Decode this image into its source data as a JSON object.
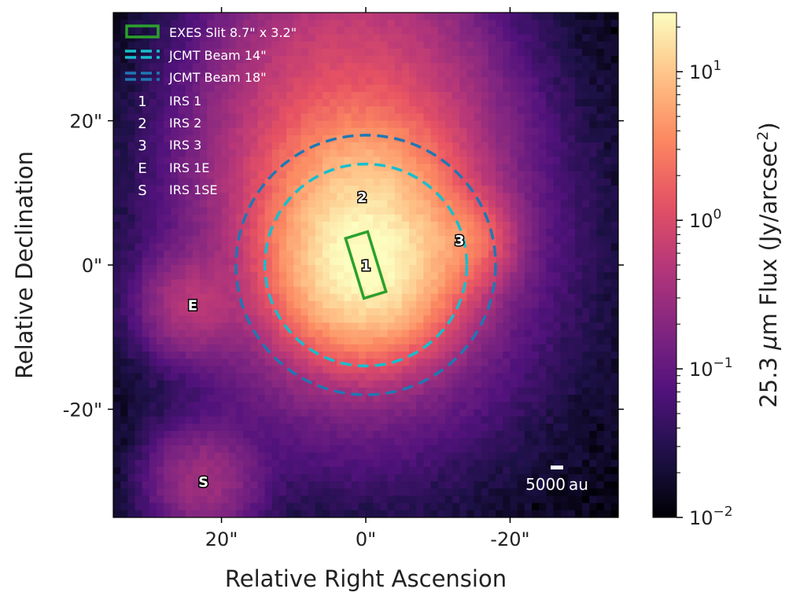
{
  "chart_data": {
    "type": "heatmap",
    "xlabel": "Relative Right Ascension",
    "ylabel": "Relative Declination",
    "x_range_arcsec": [
      35,
      -35
    ],
    "y_range_arcsec": [
      -35,
      35
    ],
    "x_ticks": [
      {
        "value": 20,
        "label": "20\""
      },
      {
        "value": 0,
        "label": "0\""
      },
      {
        "value": -20,
        "label": "-20\""
      }
    ],
    "y_ticks": [
      {
        "value": 20,
        "label": "20\""
      },
      {
        "value": 0,
        "label": "0\""
      },
      {
        "value": -20,
        "label": "-20\""
      }
    ],
    "colorbar": {
      "label_pre": "25.3 ",
      "label_mu": "μ",
      "label_post": "m Flux (Jy/arcsec",
      "label_sup": "2",
      "label_end": ")",
      "scale": "log",
      "range": [
        0.01,
        25
      ],
      "ticks": [
        {
          "value": 0.01,
          "base": "10",
          "exp": "−2"
        },
        {
          "value": 0.1,
          "base": "10",
          "exp": "−1"
        },
        {
          "value": 1,
          "base": "10",
          "exp": "0"
        },
        {
          "value": 10,
          "base": "10",
          "exp": "1"
        }
      ],
      "colormap": "magma",
      "colors": [
        "#000004",
        "#1d1147",
        "#51127c",
        "#822681",
        "#b73779",
        "#e75263",
        "#fc8961",
        "#fec287",
        "#fcfdbf"
      ]
    },
    "sources": [
      {
        "id": "1",
        "name": "IRS 1",
        "x": 0,
        "y": 0,
        "peak": 25
      },
      {
        "id": "2",
        "name": "IRS 2",
        "x": 0.5,
        "y": 9.5,
        "peak": 8
      },
      {
        "id": "3",
        "name": "IRS 3",
        "x": -13,
        "y": 3.5,
        "peak": 2.5
      },
      {
        "id": "E",
        "name": "IRS 1E",
        "x": 24,
        "y": -5.5,
        "peak": 0.4
      },
      {
        "id": "S",
        "name": "IRS 1SE",
        "x": 22.5,
        "y": -30,
        "peak": 0.3
      }
    ],
    "slit": {
      "label": "EXES Slit 8.7\" x 3.2\"",
      "length_arcsec": 8.7,
      "width_arcsec": 3.2,
      "center": [
        0,
        0
      ],
      "pa_deg": -17,
      "color": "#2ca02c"
    },
    "beams": [
      {
        "label": "JCMT Beam 14\"",
        "radius_arcsec": 14,
        "color": "#17becf"
      },
      {
        "label": "JCMT Beam 18\"",
        "radius_arcsec": 18,
        "color": "#1f77b4"
      }
    ],
    "scalebar": {
      "label_value": "5000",
      "label_unit": "au"
    }
  },
  "legend": [
    {
      "symbol": "slit",
      "label": "EXES Slit 8.7\" x 3.2\""
    },
    {
      "symbol": "beam14",
      "label": "JCMT Beam 14\""
    },
    {
      "symbol": "beam18",
      "label": "JCMT Beam 18\""
    },
    {
      "symbol": "1",
      "label": "IRS 1"
    },
    {
      "symbol": "2",
      "label": "IRS 2"
    },
    {
      "symbol": "3",
      "label": "IRS 3"
    },
    {
      "symbol": "E",
      "label": "IRS 1E"
    },
    {
      "symbol": "S",
      "label": "IRS 1SE"
    }
  ]
}
